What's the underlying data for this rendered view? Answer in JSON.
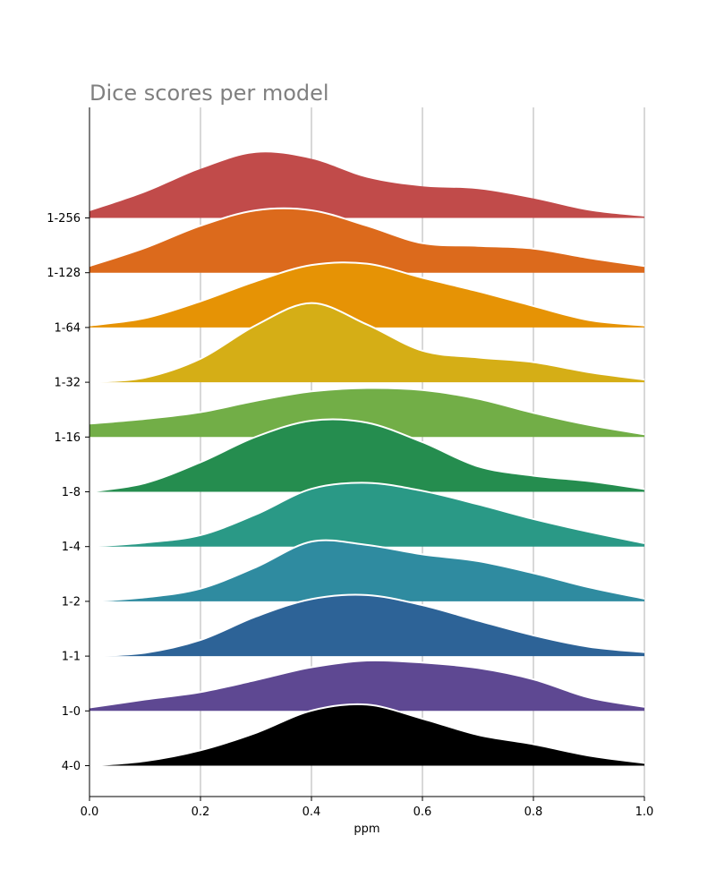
{
  "chart_data": {
    "type": "area",
    "title": "Dice scores per model",
    "xlabel": "ppm",
    "ylabel": "",
    "xlim": [
      0.0,
      1.0
    ],
    "x_ticks": [
      "0.0",
      "0.2",
      "0.4",
      "0.6",
      "0.8",
      "1.0"
    ],
    "grid": "vertical",
    "x": [
      0.0,
      0.1,
      0.2,
      0.3,
      0.4,
      0.5,
      0.6,
      0.7,
      0.8,
      0.9,
      1.0
    ],
    "series": [
      {
        "name": "1-256",
        "color": "#c14b4a",
        "values": [
          0.1,
          0.38,
          0.73,
          0.97,
          0.88,
          0.6,
          0.47,
          0.43,
          0.29,
          0.11,
          0.02
        ]
      },
      {
        "name": "1-128",
        "color": "#dc6a1c",
        "values": [
          0.1,
          0.37,
          0.7,
          0.93,
          0.93,
          0.7,
          0.44,
          0.4,
          0.36,
          0.22,
          0.1
        ]
      },
      {
        "name": "1-64",
        "color": "#e69305",
        "values": [
          0.03,
          0.14,
          0.39,
          0.69,
          0.93,
          0.95,
          0.74,
          0.54,
          0.32,
          0.11,
          0.03
        ]
      },
      {
        "name": "1-32",
        "color": "#d5ae16",
        "values": [
          0.0,
          0.07,
          0.35,
          0.85,
          1.18,
          0.86,
          0.47,
          0.37,
          0.3,
          0.15,
          0.04
        ]
      },
      {
        "name": "1-16",
        "color": "#72ae47",
        "values": [
          0.2,
          0.27,
          0.37,
          0.54,
          0.68,
          0.73,
          0.7,
          0.57,
          0.36,
          0.18,
          0.04
        ]
      },
      {
        "name": "1-8",
        "color": "#258d4f",
        "values": [
          0.0,
          0.13,
          0.44,
          0.82,
          1.06,
          1.03,
          0.74,
          0.38,
          0.24,
          0.16,
          0.04
        ]
      },
      {
        "name": "1-4",
        "color": "#2a9986",
        "values": [
          0.0,
          0.06,
          0.17,
          0.48,
          0.86,
          0.95,
          0.83,
          0.63,
          0.41,
          0.22,
          0.05
        ]
      },
      {
        "name": "1-2",
        "color": "#2f8ba0",
        "values": [
          0.0,
          0.06,
          0.19,
          0.51,
          0.89,
          0.84,
          0.7,
          0.6,
          0.42,
          0.21,
          0.04
        ]
      },
      {
        "name": "1-1",
        "color": "#2d6397",
        "values": [
          0.0,
          0.05,
          0.24,
          0.59,
          0.85,
          0.91,
          0.76,
          0.53,
          0.31,
          0.14,
          0.06
        ]
      },
      {
        "name": "1-0",
        "color": "#5e4892",
        "values": [
          0.05,
          0.17,
          0.28,
          0.46,
          0.65,
          0.75,
          0.72,
          0.64,
          0.47,
          0.2,
          0.06
        ]
      },
      {
        "name": "4-0",
        "color": "#000000",
        "values": [
          0.0,
          0.07,
          0.23,
          0.49,
          0.82,
          0.91,
          0.7,
          0.46,
          0.32,
          0.15,
          0.04
        ]
      }
    ]
  }
}
